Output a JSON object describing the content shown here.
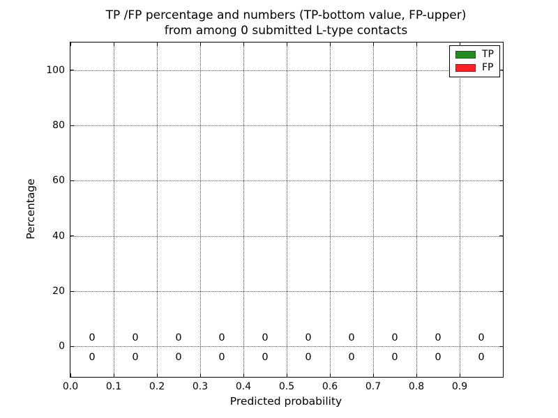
{
  "figure": {
    "title_line1": "TP /FP percentage and numbers (TP-bottom value, FP-upper)",
    "title_line2": "from among 0 submitted L-type contacts"
  },
  "legend": {
    "position": "upper right",
    "items": [
      {
        "label": "TP",
        "color": "#228B22"
      },
      {
        "label": "FP",
        "color": "#FF2222"
      }
    ]
  },
  "chart_data": {
    "type": "bar",
    "title": "TP /FP percentage and numbers (TP-bottom value, FP-upper)\nfrom among 0 submitted L-type contacts",
    "xlabel": "Predicted probability",
    "ylabel": "Percentage",
    "xlim": [
      0.0,
      1.0
    ],
    "ylim": [
      -11,
      110
    ],
    "xtick_values": [
      0.0,
      0.1,
      0.2,
      0.3,
      0.4,
      0.5,
      0.6,
      0.7,
      0.8,
      0.9
    ],
    "xtick_labels": [
      "0.0",
      "0.1",
      "0.2",
      "0.3",
      "0.4",
      "0.5",
      "0.6",
      "0.7",
      "0.8",
      "0.9"
    ],
    "ytick_values": [
      0,
      20,
      40,
      60,
      80,
      100
    ],
    "ytick_labels": [
      "0",
      "20",
      "40",
      "60",
      "80",
      "100"
    ],
    "grid": true,
    "grid_linestyle": "dotted",
    "legend_position": "upper right",
    "baseline_value": 0,
    "bin_centers": [
      0.05,
      0.15,
      0.25,
      0.35,
      0.45,
      0.55,
      0.65,
      0.75,
      0.85,
      0.95
    ],
    "series": [
      {
        "name": "TP",
        "color": "#228B22",
        "values": [
          0,
          0,
          0,
          0,
          0,
          0,
          0,
          0,
          0,
          0
        ],
        "label_row": "below-baseline"
      },
      {
        "name": "FP",
        "color": "#FF2222",
        "values": [
          0,
          0,
          0,
          0,
          0,
          0,
          0,
          0,
          0,
          0
        ],
        "label_row": "above-baseline"
      }
    ]
  }
}
